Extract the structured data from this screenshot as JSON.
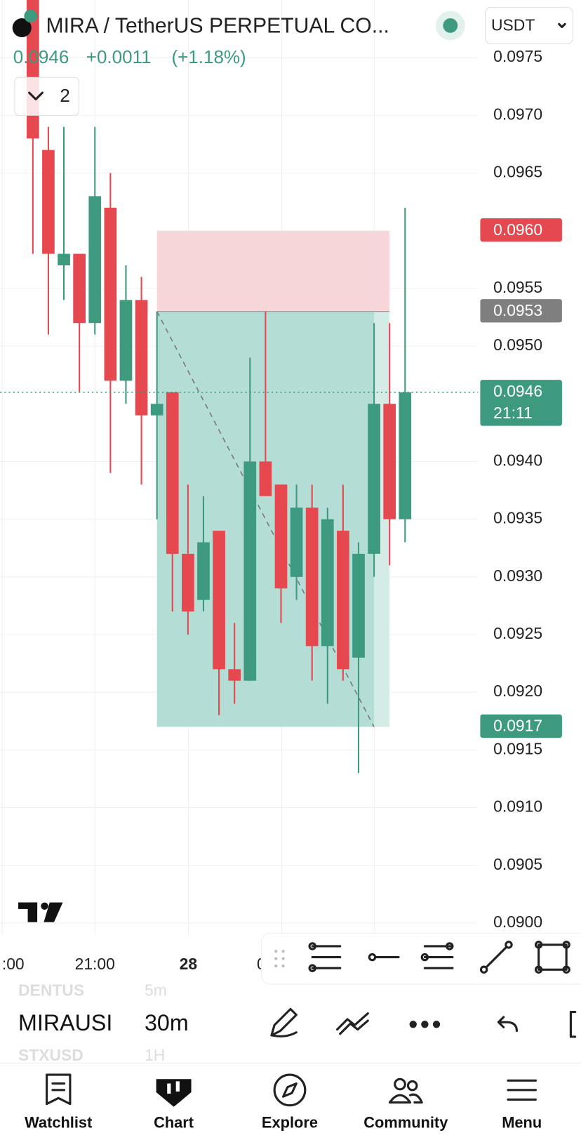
{
  "header": {
    "symbol": "MIRA / TetherUS PERPETUAL CO...",
    "price": "0.0946",
    "change": "+0.0011",
    "change_pct": "(+1.18%)",
    "quote": "USDT",
    "indicators_count": "2"
  },
  "chart_data": {
    "type": "candlestick",
    "x_labels": [
      ":00",
      "21:00",
      "28",
      "0"
    ],
    "up_color": "#3d9a7e",
    "down_color": "#e5484f",
    "open": [
      0.098,
      0.0967,
      0.0957,
      0.0958,
      0.0952,
      0.0962,
      0.0947,
      0.0954,
      0.0944,
      0.0946,
      0.0932,
      0.0928,
      0.0934,
      0.0922,
      0.0921,
      0.094,
      0.0938,
      0.093,
      0.0936,
      0.0924,
      0.0934,
      0.0923,
      0.0932,
      0.0945,
      0.0935
    ],
    "high": [
      0.098,
      0.0969,
      0.0969,
      0.0958,
      0.0969,
      0.0965,
      0.0957,
      0.0956,
      0.0953,
      0.0946,
      0.0938,
      0.0937,
      0.0934,
      0.0926,
      0.0949,
      0.0953,
      0.0938,
      0.0938,
      0.0938,
      0.0936,
      0.0938,
      0.0933,
      0.0952,
      0.0952,
      0.0962
    ],
    "low": [
      0.0958,
      0.0951,
      0.0954,
      0.0946,
      0.0951,
      0.0939,
      0.0945,
      0.0938,
      0.0935,
      0.0927,
      0.0925,
      0.0927,
      0.0918,
      0.0919,
      0.0921,
      0.0937,
      0.0926,
      0.0928,
      0.0921,
      0.0919,
      0.0921,
      0.0913,
      0.093,
      0.0931,
      0.0933
    ],
    "close": [
      0.0968,
      0.0958,
      0.0958,
      0.0952,
      0.0963,
      0.0947,
      0.0954,
      0.0944,
      0.0945,
      0.0932,
      0.0927,
      0.0933,
      0.0922,
      0.0921,
      0.094,
      0.0937,
      0.0929,
      0.0936,
      0.0924,
      0.0935,
      0.0922,
      0.0932,
      0.0945,
      0.0935,
      0.0946
    ],
    "ylim": [
      0.0899,
      0.098
    ],
    "yticks": [
      0.0975,
      {
        "value": 0.097,
        "label": "0.0970"
      },
      0.0965,
      0.0955,
      {
        "value": 0.095,
        "label": "0.0950"
      },
      {
        "value": 0.094,
        "label": "0.0940"
      },
      0.0935,
      {
        "value": 0.093,
        "label": "0.0930"
      },
      0.0925,
      {
        "value": 0.092,
        "label": "0.0920"
      },
      0.0915,
      {
        "value": 0.091,
        "label": "0.0910"
      },
      0.0905,
      {
        "value": 0.09,
        "label": "0.0900"
      }
    ],
    "price_tags": [
      {
        "value": 0.096,
        "label": "0.0960",
        "color": "#e5484f"
      },
      {
        "value": 0.0953,
        "label": "0.0953",
        "color": "#7f7f7f"
      },
      {
        "value": 0.0946,
        "label": "0.0946",
        "countdown": "21:11",
        "color": "#3d9a7e"
      },
      {
        "value": 0.0917,
        "label": "0.0917",
        "color": "#3d9a7e"
      }
    ],
    "grid": true
  },
  "symbol_picker": {
    "symbols": [
      "DENTUS",
      "MIRAUSI",
      "STXUSD"
    ],
    "intervals": [
      "5m",
      "30m",
      "1H"
    ]
  },
  "tabs": [
    "Watchlist",
    "Chart",
    "Explore",
    "Community",
    "Menu"
  ]
}
